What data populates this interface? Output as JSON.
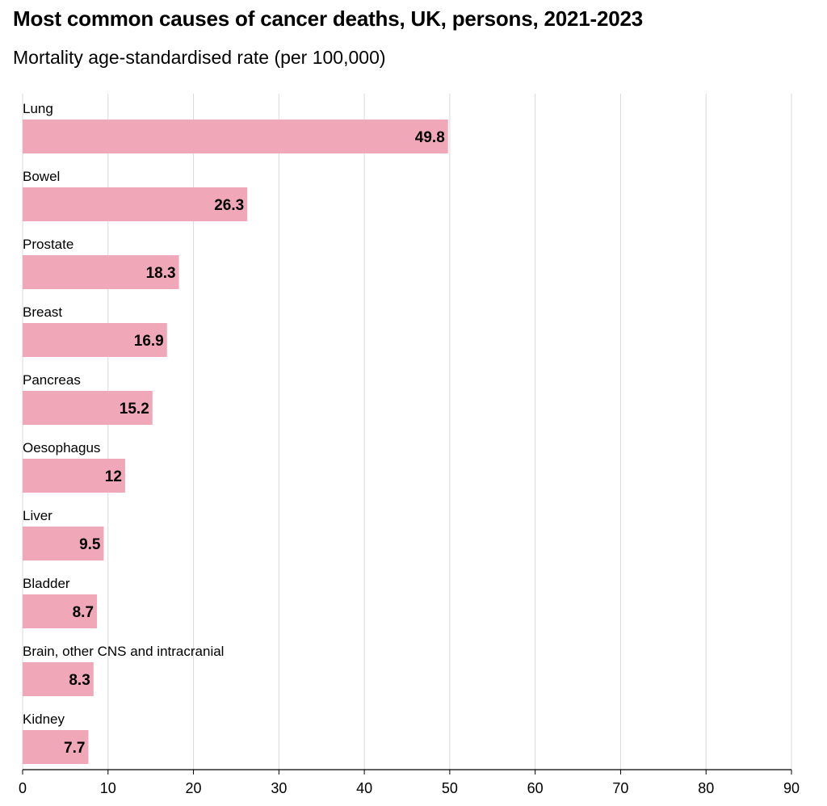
{
  "title": "Most common causes of cancer deaths, UK, persons, 2021-2023",
  "subtitle": "Mortality age-standardised rate (per 100,000)",
  "colors": {
    "bar": "#f0a8b8",
    "gridline": "#d9d9d9",
    "axis": "#000000"
  },
  "chart_data": {
    "type": "bar",
    "orientation": "horizontal",
    "categories": [
      "Lung",
      "Bowel",
      "Prostate",
      "Breast",
      "Pancreas",
      "Oesophagus",
      "Liver",
      "Bladder",
      "Brain, other CNS and intracranial",
      "Kidney"
    ],
    "values": [
      49.8,
      26.3,
      18.3,
      16.9,
      15.2,
      12,
      9.5,
      8.7,
      8.3,
      7.7
    ],
    "value_labels": [
      "49.8",
      "26.3",
      "18.3",
      "16.9",
      "15.2",
      "12",
      "9.5",
      "8.7",
      "8.3",
      "7.7"
    ],
    "xlim": [
      0,
      90
    ],
    "xticks": [
      "0",
      "10",
      "20",
      "30",
      "40",
      "50",
      "60",
      "70",
      "80",
      "90"
    ],
    "grid": true
  }
}
